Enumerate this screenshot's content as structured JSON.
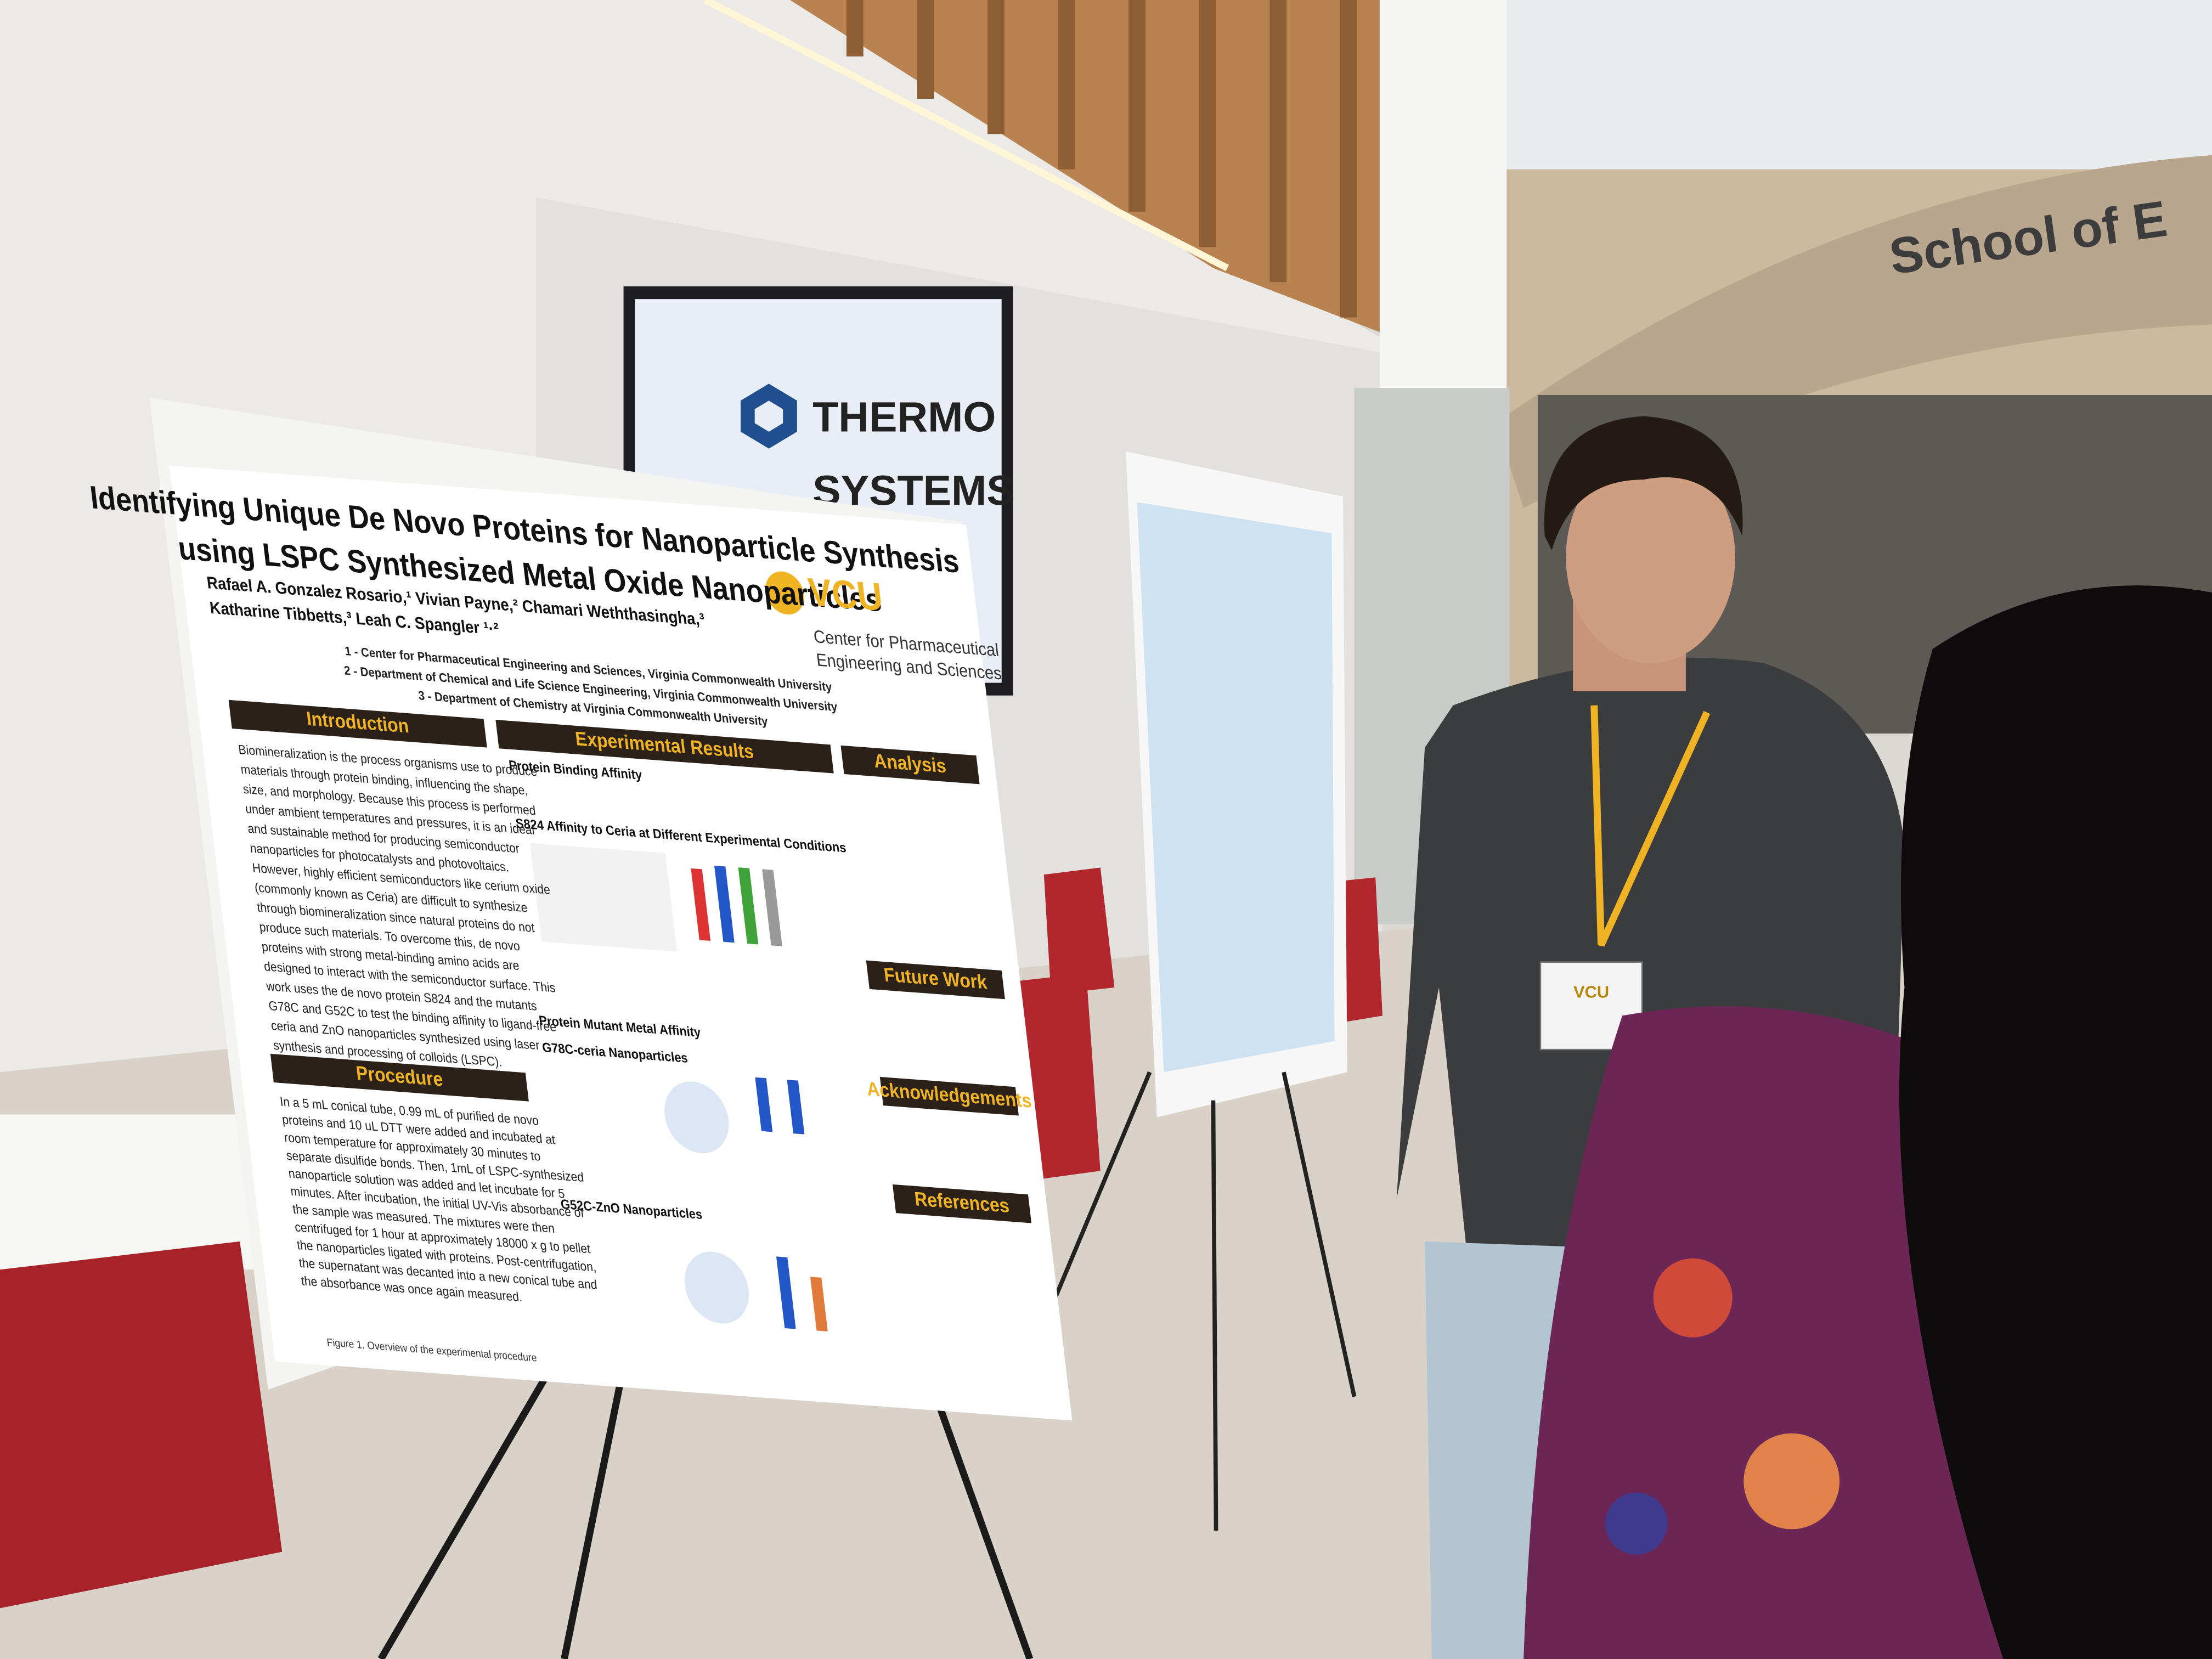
{
  "screen": {
    "brand_line1": "THERMO",
    "brand_line2": "SYSTEMS"
  },
  "building_sign": "School of E",
  "badge": {
    "logo": "VCU"
  },
  "poster": {
    "title_lines": [
      "Identifying Unique De Novo Proteins for Nanoparticle Synthesis",
      "using LSPC Synthesized Metal Oxide Nanoparticles"
    ],
    "author_lines": [
      "Rafael A. Gonzalez Rosario,¹ Vivian Payne,² Chamari Weththasingha,³",
      "Katharine Tibbetts,³ Leah C. Spangler ¹·²"
    ],
    "affiliations": [
      "1 - Center for Pharmaceutical Engineering and Sciences, Virginia Commonwealth University",
      "2 - Department of Chemical and Life Science Engineering, Virginia Commonwealth University",
      "3 - Department of Chemistry at Virginia Commonwealth University"
    ],
    "logo": "VCU",
    "logo_caption": [
      "Center for Pharmaceutical",
      "Engineering and Sciences"
    ],
    "introduction": {
      "heading": "Introduction",
      "lines": [
        "Biomineralization is the process organisms use to produce",
        "materials through protein binding, influencing the shape,",
        "size, and morphology. Because this process is performed",
        "under ambient temperatures and pressures, it is an ideal",
        "and sustainable method for producing semiconductor",
        "nanoparticles for photocatalysts and photovoltaics.",
        "However, highly efficient semiconductors like cerium oxide",
        "(commonly known as Ceria) are difficult to synthesize",
        "through biomineralization since natural proteins do not",
        "produce such materials. To overcome this, de novo",
        "proteins with strong metal-binding amino acids are",
        "designed to interact with the semiconductor surface. This",
        "work uses the de novo protein S824 and the mutants",
        "G78C and G52C to test the binding affinity to ligand-free",
        "ceria and ZnO nanoparticles synthesized using laser",
        "synthesis and processing of colloids (LSPC)."
      ]
    },
    "procedure": {
      "heading": "Procedure",
      "lines": [
        "In a 5 mL conical tube, 0.99 mL of purified de novo",
        "proteins and 10 uL DTT were added and incubated at",
        "room temperature for approximately 30 minutes to",
        "separate disulfide bonds. Then, 1mL of LSPC-synthesized",
        "nanoparticle solution was added and let incubate for 5",
        "minutes. After incubation, the initial UV-Vis absorbance of",
        "the sample was measured. The mixtures were then",
        "centrifuged for 1 hour at approximately 18000 x g to pellet",
        "the nanoparticles ligated with proteins. Post-centrifugation,",
        "the supernatant was decanted into a new conical tube and",
        "the absorbance was once again measured."
      ],
      "figure_caption": "Figure 1. Overview of the experimental procedure"
    },
    "results": {
      "heading": "Experimental Results",
      "subheadings": [
        "Protein Binding Affinity",
        "S824 Affinity to Ceria at Different Experimental Conditions",
        "Protein Mutant Metal Affinity",
        "G78C-ceria Nanoparticles",
        "G52C-ZnO Nanoparticles"
      ]
    },
    "side_headings": [
      "Analysis",
      "Future Work",
      "Acknowledgements",
      "References"
    ]
  }
}
